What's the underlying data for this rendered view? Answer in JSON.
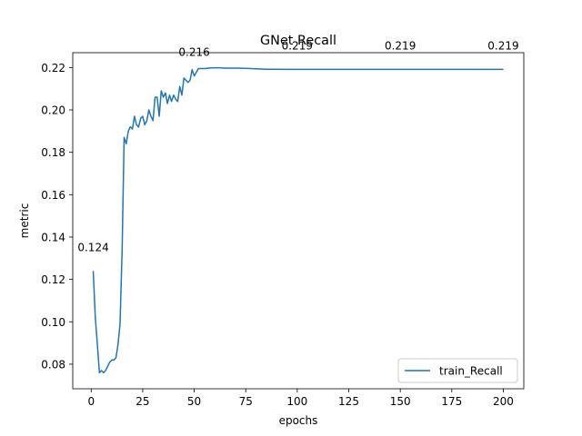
{
  "chart_data": {
    "type": "line",
    "title": "GNet Recall",
    "xlabel": "epochs",
    "ylabel": "metric",
    "xlim": [
      -8.95,
      209.95
    ],
    "ylim": [
      0.0684,
      0.227
    ],
    "grid": false,
    "legend_position": "lower right",
    "x_ticks": [
      0,
      25,
      50,
      75,
      100,
      125,
      150,
      175,
      200
    ],
    "y_ticks": [
      0.08,
      0.1,
      0.12,
      0.14,
      0.16,
      0.18,
      0.2,
      0.22
    ],
    "y_tick_labels": [
      "0.08",
      "0.10",
      "0.12",
      "0.14",
      "0.16",
      "0.18",
      "0.20",
      "0.22"
    ],
    "colors": {
      "train_Recall": "#1f77b4"
    },
    "series": [
      {
        "name": "train_Recall",
        "x": [
          1,
          2,
          3,
          4,
          5,
          6,
          7,
          8,
          9,
          10,
          11,
          12,
          13,
          14,
          15,
          16,
          17,
          18,
          19,
          20,
          21,
          22,
          23,
          24,
          25,
          26,
          27,
          28,
          29,
          30,
          31,
          32,
          33,
          34,
          35,
          36,
          37,
          38,
          39,
          40,
          41,
          42,
          43,
          44,
          45,
          46,
          47,
          48,
          49,
          50,
          52,
          55,
          58,
          60,
          62,
          65,
          70,
          75,
          80,
          85,
          90,
          95,
          100,
          110,
          120,
          130,
          140,
          150,
          160,
          170,
          180,
          190,
          200
        ],
        "values": [
          0.124,
          0.102,
          0.089,
          0.076,
          0.077,
          0.076,
          0.077,
          0.079,
          0.081,
          0.082,
          0.082,
          0.083,
          0.089,
          0.099,
          0.134,
          0.187,
          0.184,
          0.19,
          0.192,
          0.191,
          0.197,
          0.193,
          0.192,
          0.196,
          0.197,
          0.193,
          0.195,
          0.2,
          0.197,
          0.195,
          0.206,
          0.206,
          0.197,
          0.209,
          0.206,
          0.208,
          0.203,
          0.207,
          0.204,
          0.207,
          0.205,
          0.204,
          0.211,
          0.207,
          0.215,
          0.214,
          0.213,
          0.214,
          0.219,
          0.216,
          0.2195,
          0.2195,
          0.2198,
          0.2199,
          0.2199,
          0.2197,
          0.2197,
          0.2196,
          0.2194,
          0.2192,
          0.2192,
          0.2191,
          0.2191,
          0.2191,
          0.2191,
          0.2191,
          0.2191,
          0.2191,
          0.2191,
          0.2191,
          0.2191,
          0.2191,
          0.2191
        ]
      }
    ],
    "annotations": [
      {
        "x": 1,
        "y": 0.124,
        "text": "0.124"
      },
      {
        "x": 50,
        "y": 0.216,
        "text": "0.216"
      },
      {
        "x": 100,
        "y": 0.219,
        "text": "0.219"
      },
      {
        "x": 150,
        "y": 0.219,
        "text": "0.219"
      },
      {
        "x": 200,
        "y": 0.219,
        "text": "0.219"
      }
    ]
  }
}
